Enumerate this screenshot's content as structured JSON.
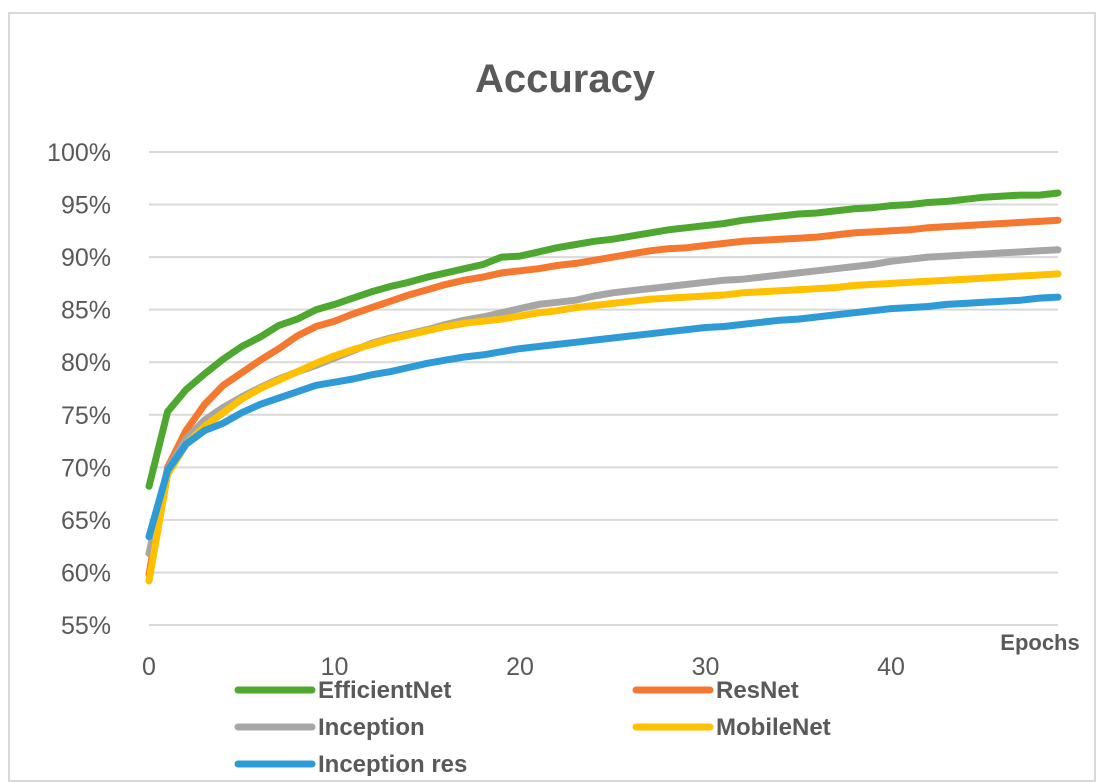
{
  "chart_data": {
    "type": "line",
    "title": "Accuracy",
    "xlabel": "Epochs",
    "ylabel": "",
    "xlim": [
      0,
      49
    ],
    "ylim": [
      0.55,
      1.0
    ],
    "y_ticks": [
      "55%",
      "60%",
      "65%",
      "70%",
      "75%",
      "80%",
      "85%",
      "90%",
      "95%",
      "100%"
    ],
    "y_tick_values": [
      0.55,
      0.6,
      0.65,
      0.7,
      0.75,
      0.8,
      0.85,
      0.9,
      0.95,
      1.0
    ],
    "x_ticks": [
      "0",
      "10",
      "20",
      "30",
      "40"
    ],
    "x_tick_values": [
      0,
      10,
      20,
      30,
      40
    ],
    "grid": "horizontal",
    "legend": "bottom",
    "series": [
      {
        "name": "EfficientNet",
        "color": "#4ea72e",
        "values": [
          0.682,
          0.753,
          0.774,
          0.789,
          0.803,
          0.815,
          0.824,
          0.835,
          0.841,
          0.85,
          0.855,
          0.861,
          0.867,
          0.872,
          0.876,
          0.881,
          0.885,
          0.889,
          0.893,
          0.9,
          0.901,
          0.905,
          0.909,
          0.912,
          0.915,
          0.917,
          0.92,
          0.923,
          0.926,
          0.928,
          0.93,
          0.932,
          0.935,
          0.937,
          0.939,
          0.941,
          0.942,
          0.944,
          0.946,
          0.947,
          0.949,
          0.95,
          0.952,
          0.953,
          0.955,
          0.957,
          0.958,
          0.959,
          0.959,
          0.961
        ]
      },
      {
        "name": "ResNet",
        "color": "#f4782f",
        "values": [
          0.598,
          0.7,
          0.735,
          0.76,
          0.778,
          0.79,
          0.802,
          0.813,
          0.825,
          0.834,
          0.839,
          0.846,
          0.852,
          0.858,
          0.864,
          0.869,
          0.874,
          0.878,
          0.881,
          0.885,
          0.887,
          0.889,
          0.892,
          0.894,
          0.897,
          0.9,
          0.903,
          0.906,
          0.908,
          0.909,
          0.911,
          0.913,
          0.915,
          0.916,
          0.917,
          0.918,
          0.919,
          0.921,
          0.923,
          0.924,
          0.925,
          0.926,
          0.928,
          0.929,
          0.93,
          0.931,
          0.932,
          0.933,
          0.934,
          0.935
        ]
      },
      {
        "name": "Inception",
        "color": "#a6a6a6",
        "values": [
          0.618,
          0.698,
          0.727,
          0.745,
          0.757,
          0.767,
          0.776,
          0.784,
          0.791,
          0.797,
          0.804,
          0.811,
          0.818,
          0.823,
          0.827,
          0.831,
          0.836,
          0.84,
          0.843,
          0.847,
          0.851,
          0.855,
          0.857,
          0.859,
          0.863,
          0.866,
          0.868,
          0.87,
          0.872,
          0.874,
          0.876,
          0.878,
          0.879,
          0.881,
          0.883,
          0.885,
          0.887,
          0.889,
          0.891,
          0.893,
          0.896,
          0.898,
          0.9,
          0.901,
          0.902,
          0.903,
          0.904,
          0.905,
          0.906,
          0.907
        ]
      },
      {
        "name": "MobileNet",
        "color": "#ffc000",
        "values": [
          0.592,
          0.693,
          0.722,
          0.739,
          0.752,
          0.765,
          0.775,
          0.783,
          0.791,
          0.799,
          0.806,
          0.812,
          0.817,
          0.822,
          0.826,
          0.83,
          0.834,
          0.837,
          0.839,
          0.841,
          0.844,
          0.847,
          0.849,
          0.852,
          0.854,
          0.856,
          0.858,
          0.86,
          0.861,
          0.862,
          0.863,
          0.864,
          0.866,
          0.867,
          0.868,
          0.869,
          0.87,
          0.871,
          0.873,
          0.874,
          0.875,
          0.876,
          0.877,
          0.878,
          0.879,
          0.88,
          0.881,
          0.882,
          0.883,
          0.884
        ]
      },
      {
        "name": "Inception res",
        "color": "#2e9bd6",
        "values": [
          0.634,
          0.697,
          0.722,
          0.735,
          0.742,
          0.752,
          0.76,
          0.766,
          0.772,
          0.778,
          0.781,
          0.784,
          0.788,
          0.791,
          0.795,
          0.799,
          0.802,
          0.805,
          0.807,
          0.81,
          0.813,
          0.815,
          0.817,
          0.819,
          0.821,
          0.823,
          0.825,
          0.827,
          0.829,
          0.831,
          0.833,
          0.834,
          0.836,
          0.838,
          0.84,
          0.841,
          0.843,
          0.845,
          0.847,
          0.849,
          0.851,
          0.852,
          0.853,
          0.855,
          0.856,
          0.857,
          0.858,
          0.859,
          0.861,
          0.862
        ]
      }
    ]
  }
}
